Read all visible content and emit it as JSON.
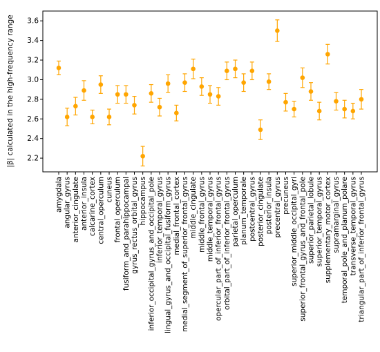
{
  "chart_data": {
    "type": "scatter",
    "title": "",
    "xlabel": "",
    "ylabel": "|β| calculated in the high-frequency range",
    "ylim": [
      2.06,
      3.7
    ],
    "yticks": [
      "2.2",
      "2.4",
      "2.6",
      "2.8",
      "3.0",
      "3.2",
      "3.4",
      "3.6"
    ],
    "grid": false,
    "marker_color": "#FFA500",
    "categories": [
      "amygdala",
      "angular_gyrus",
      "anterior_cingulate",
      "anterior_insula",
      "calcarine_cortex",
      "central_operculum",
      "cuneus",
      "frontal_operculum",
      "fusiform_and_parahippocampal",
      "gyrus_rectus_orbital_gyrus",
      "hippocampus",
      "inferior_occipital_gyrus_and_occipital_pole",
      "inferior_temporal_gyrus",
      "lingual_gyrus_and_occipital_fusiform_gyrus",
      "medial_frontal_cortex",
      "medial_segment_of_superior_frontal_gyrus",
      "middle_cingulate",
      "middle_frontal_gyrus",
      "middle_temporal_gyrus",
      "opercular_part_of_inferior_frontal_gyrus",
      "orbital_part_of_inferior_frontal_gyrus",
      "parietal_operculum",
      "planum_temporale",
      "postcentral_gyrus",
      "posterior_cingulate",
      "posterior_insula",
      "precentral_gyrus",
      "precuneus",
      "superior_middle_occipital_gyri",
      "superior_frontal_gyrus_and_frontal_pole",
      "superior_parietal_lobule",
      "superior_temporal_gyrus",
      "supplementary_motor_cortex",
      "supramarginal_gyrus",
      "temporal_pole_and_planum_polare",
      "transverse_temporal_gyrus",
      "triangular_part_of_inferior_frontal_gyrus"
    ],
    "values": [
      3.12,
      2.62,
      2.73,
      2.89,
      2.62,
      2.95,
      2.62,
      2.85,
      2.85,
      2.74,
      2.22,
      2.86,
      2.72,
      2.96,
      2.66,
      2.97,
      3.11,
      2.93,
      2.85,
      2.83,
      3.09,
      3.11,
      2.97,
      3.09,
      2.49,
      2.98,
      3.5,
      2.77,
      2.7,
      3.02,
      2.88,
      2.68,
      3.26,
      2.78,
      2.7,
      2.68,
      2.8
    ],
    "errors": [
      0.07,
      0.09,
      0.09,
      0.1,
      0.07,
      0.09,
      0.08,
      0.09,
      0.09,
      0.09,
      0.1,
      0.09,
      0.09,
      0.09,
      0.08,
      0.09,
      0.1,
      0.09,
      0.09,
      0.09,
      0.09,
      0.09,
      0.09,
      0.09,
      0.1,
      0.08,
      0.11,
      0.09,
      0.08,
      0.1,
      0.09,
      0.09,
      0.1,
      0.09,
      0.09,
      0.08,
      0.1
    ]
  }
}
